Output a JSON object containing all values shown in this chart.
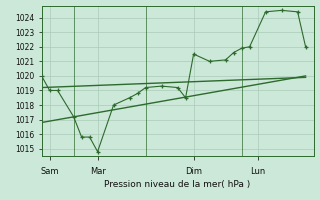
{
  "title": "Pression niveau de la mer( hPa )",
  "bg_color": "#cce8d8",
  "grid_color": "#aaccb8",
  "line_color": "#2d6a2d",
  "ylim": [
    1014.5,
    1024.8
  ],
  "yticks": [
    1015,
    1016,
    1017,
    1018,
    1019,
    1020,
    1021,
    1022,
    1023,
    1024
  ],
  "xlim": [
    0,
    17
  ],
  "day_labels": [
    "Sam",
    "Mar",
    "Dim",
    "Lun"
  ],
  "day_positions": [
    0.5,
    3.5,
    9.5,
    13.5
  ],
  "vline_positions": [
    2.0,
    6.5,
    12.5
  ],
  "series_x": [
    0.0,
    0.5,
    1.0,
    2.0,
    2.5,
    3.0,
    3.5,
    4.5,
    5.5,
    6.0,
    6.5,
    7.5,
    8.5,
    9.0,
    9.5,
    10.5,
    11.5,
    12.0,
    12.5,
    13.0,
    14.0,
    15.0,
    16.0,
    16.5
  ],
  "series_y": [
    1020.0,
    1019.0,
    1019.0,
    1017.2,
    1015.8,
    1015.8,
    1014.8,
    1018.0,
    1018.5,
    1018.8,
    1019.2,
    1019.3,
    1019.2,
    1018.5,
    1021.5,
    1021.0,
    1021.1,
    1021.6,
    1021.9,
    1022.0,
    1024.4,
    1024.5,
    1024.4,
    1022.0
  ],
  "trend1_x": [
    0.0,
    16.5
  ],
  "trend1_y": [
    1019.2,
    1019.9
  ],
  "trend2_x": [
    0.0,
    16.5
  ],
  "trend2_y": [
    1016.8,
    1020.0
  ]
}
